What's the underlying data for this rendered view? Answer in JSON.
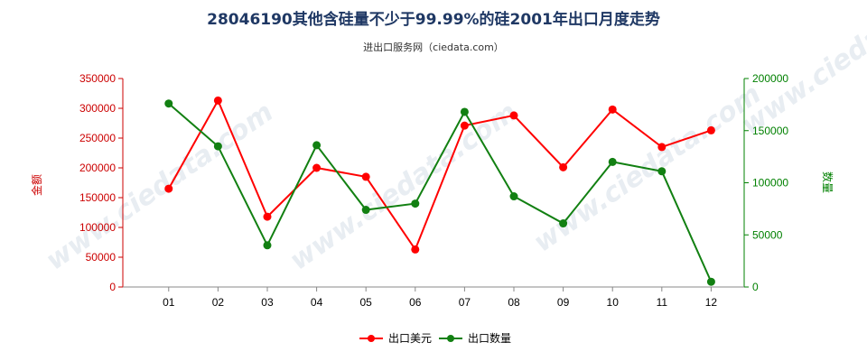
{
  "title": "28046190其他含硅量不少于99.99%的硅2001年出口月度走势",
  "subtitle": "进出口服务网（ciedata.com）",
  "watermark": "www.ciedata.com",
  "chart_data": {
    "type": "line",
    "categories": [
      "01",
      "02",
      "03",
      "04",
      "05",
      "06",
      "07",
      "08",
      "09",
      "10",
      "11",
      "12"
    ],
    "left_axis": {
      "title": "金额",
      "ylim": [
        0,
        350000
      ],
      "ticks": [
        0,
        50000,
        100000,
        150000,
        200000,
        250000,
        300000,
        350000
      ],
      "color": "#cc0000"
    },
    "right_axis": {
      "title": "数量",
      "ylim": [
        0,
        200000
      ],
      "ticks": [
        0,
        50000,
        100000,
        150000,
        200000
      ],
      "color": "#008000"
    },
    "series": [
      {
        "name": "出口美元",
        "axis": "left",
        "color": "#ff0000",
        "values": [
          165000,
          313000,
          118000,
          200000,
          185000,
          63000,
          271000,
          288000,
          201000,
          298000,
          235000,
          263000
        ]
      },
      {
        "name": "出口数量",
        "axis": "right",
        "color": "#128012",
        "values": [
          176000,
          135000,
          40000,
          136000,
          74000,
          80000,
          168000,
          87000,
          61000,
          120000,
          111000,
          5000
        ]
      }
    ],
    "legend_position": "bottom-center",
    "grid": false
  }
}
